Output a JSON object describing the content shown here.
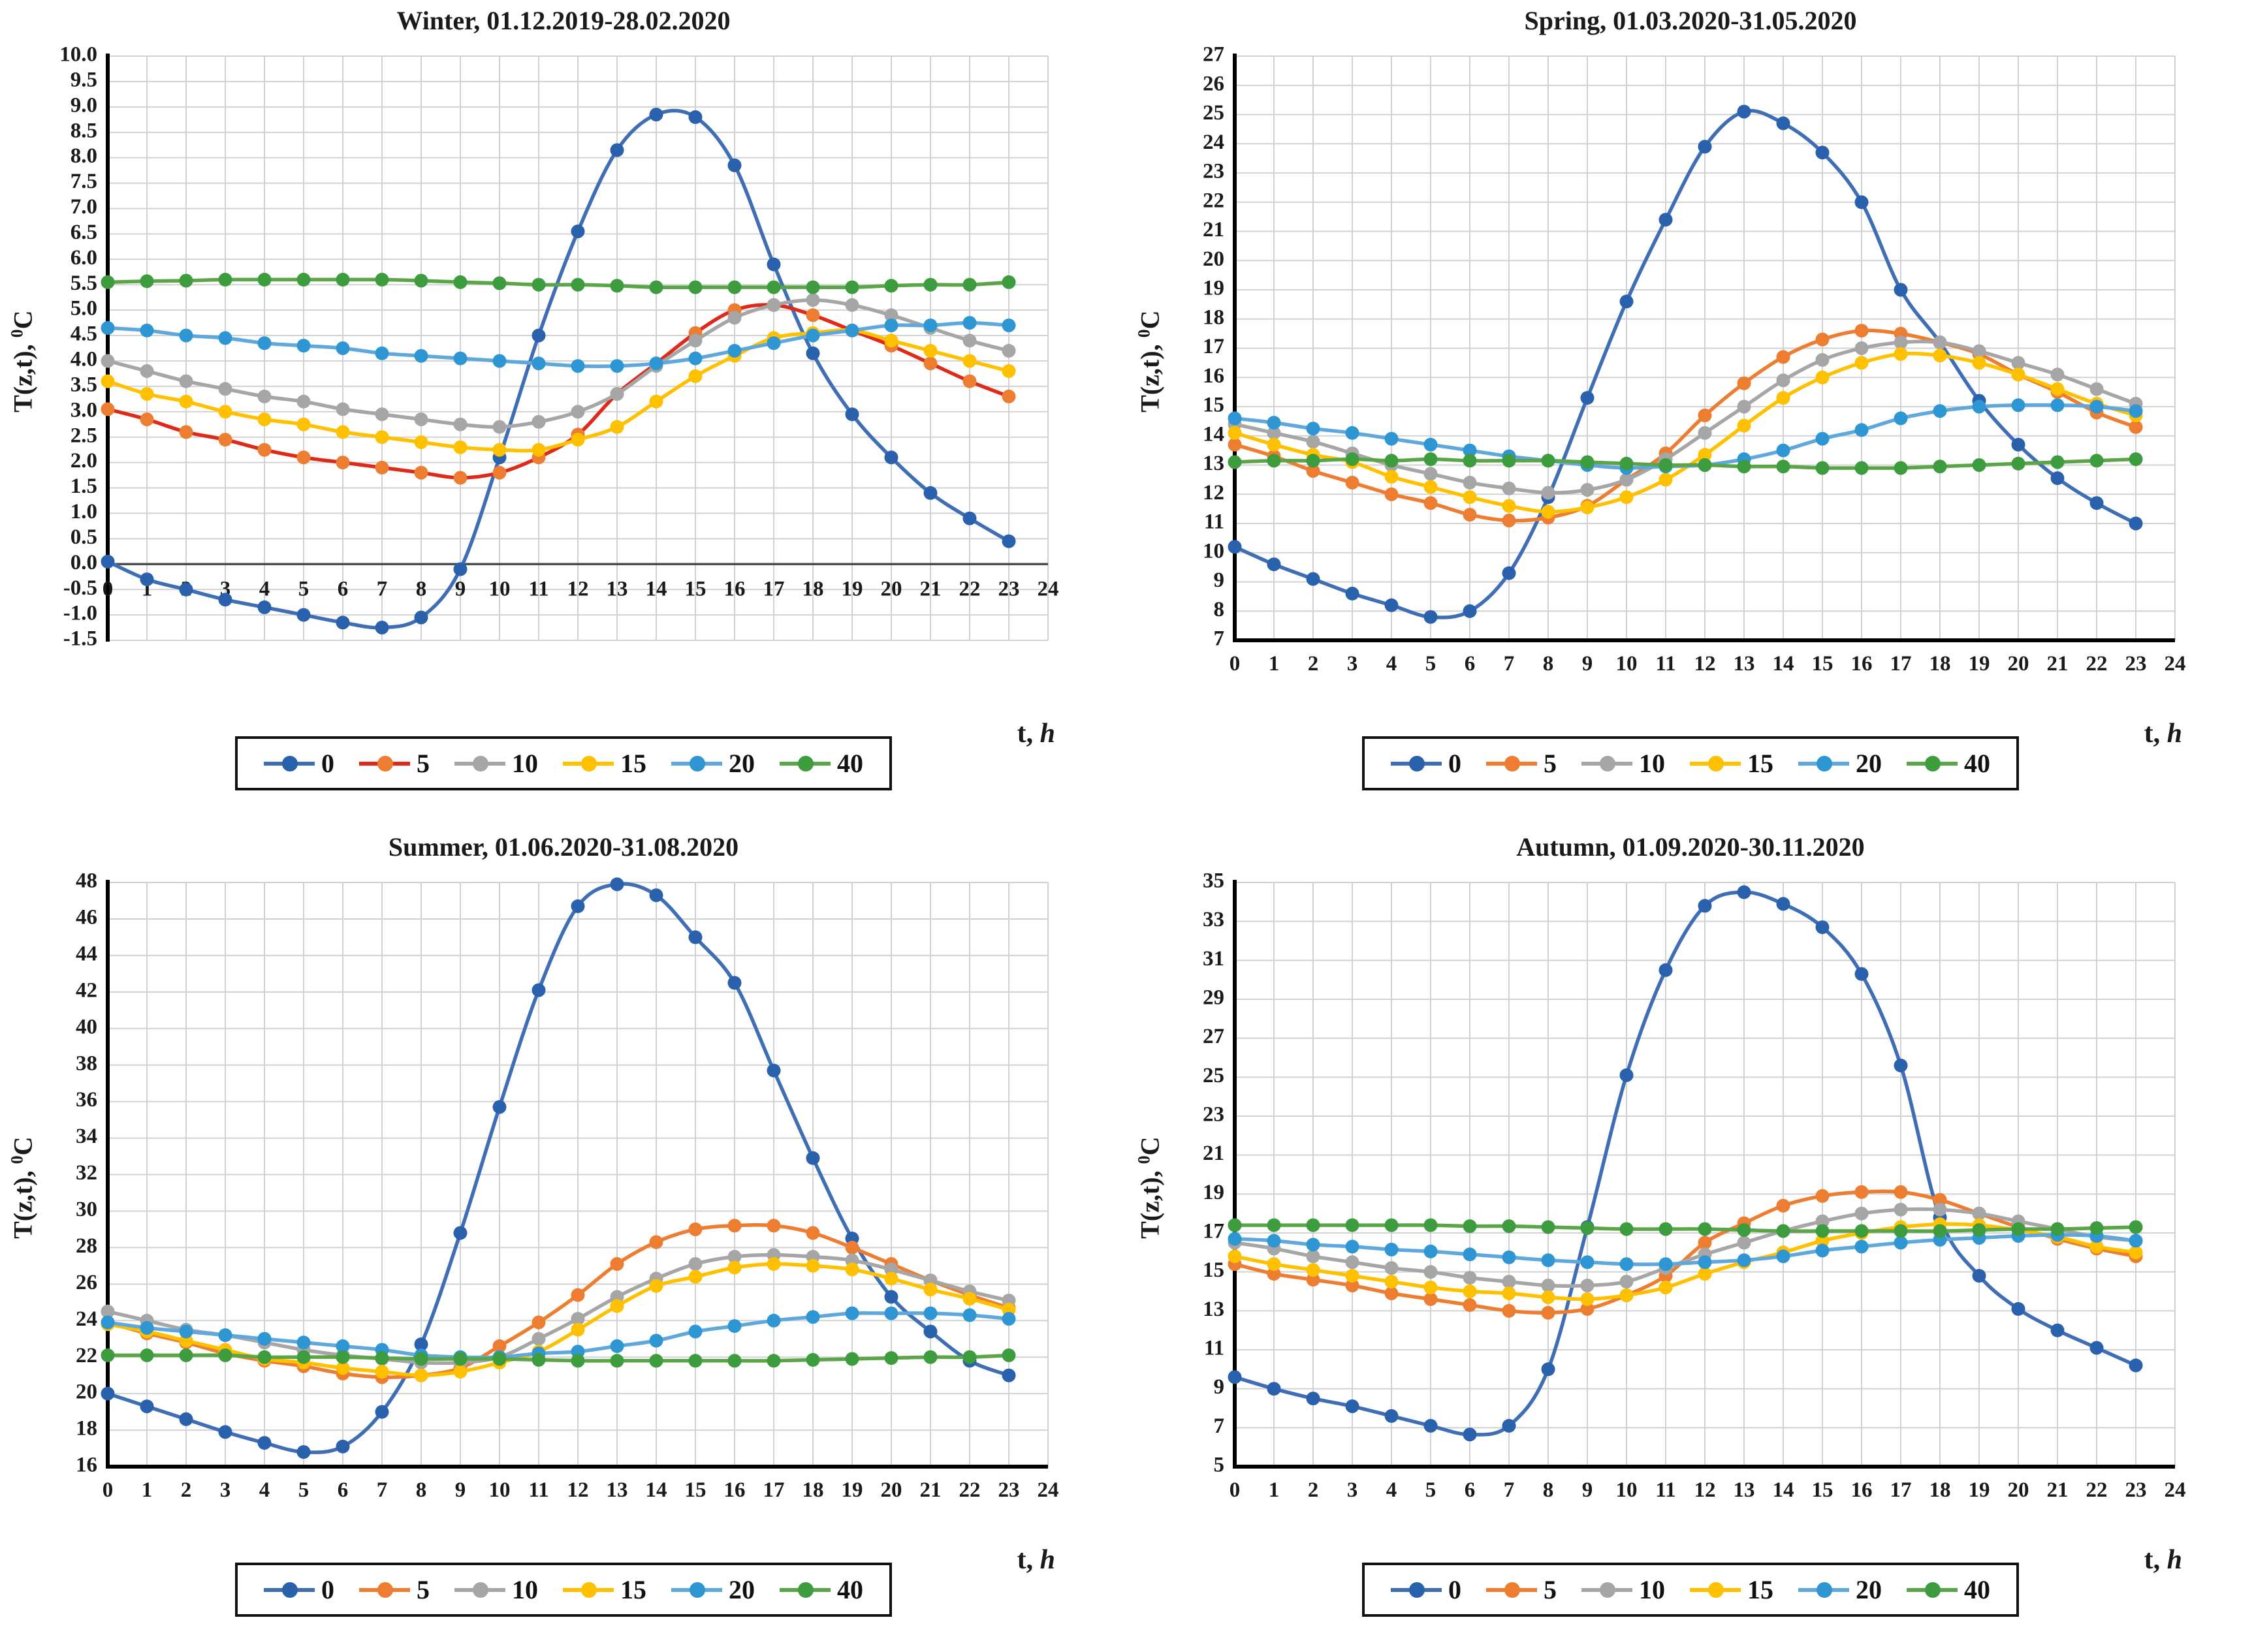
{
  "figure": {
    "background": "#ffffff",
    "grid_color": "#d2d2d2",
    "axis_color": "#000000",
    "zero_line_color": "#4d4d4d",
    "description": "Hourly ground temperature T(z,t) at depths 0,5,10,15,20,40 cm for four seasons"
  },
  "axis_labels": {
    "y_prefix": "T(z,t), ",
    "y_sup": "0",
    "y_suffix": "C",
    "x_t": "t, ",
    "x_h": "h"
  },
  "chart_data": [
    {
      "type": "line",
      "title": "Winter, 01.12.2019-28.02.2020",
      "xlabel": "t, h",
      "ylabel": "T(z,t), 0C",
      "x": [
        0,
        1,
        2,
        3,
        4,
        5,
        6,
        7,
        8,
        9,
        10,
        11,
        12,
        13,
        14,
        15,
        16,
        17,
        18,
        19,
        20,
        21,
        22,
        23
      ],
      "xlim": [
        0,
        24
      ],
      "ylim": [
        -1.5,
        10.0
      ],
      "y_step": 0.5,
      "y_decimals": 1,
      "x_axis_at_zero": true,
      "grid": true,
      "legend_position": "bottom",
      "legend": [
        "0",
        "5",
        "10",
        "15",
        "20",
        "40"
      ],
      "series": [
        {
          "name": "0",
          "line": "#3F6EB5",
          "marker": "#2A61AC",
          "values": [
            0.05,
            -0.3,
            -0.5,
            -0.7,
            -0.85,
            -1.0,
            -1.15,
            -1.25,
            -1.05,
            -0.1,
            2.1,
            4.5,
            6.55,
            8.15,
            8.85,
            8.8,
            7.85,
            5.9,
            4.15,
            2.95,
            2.1,
            1.4,
            0.9,
            0.45
          ]
        },
        {
          "name": "5",
          "line": "#DD2A1B",
          "marker": "#ED7D31",
          "values": [
            3.05,
            2.85,
            2.6,
            2.45,
            2.25,
            2.1,
            2.0,
            1.9,
            1.8,
            1.7,
            1.8,
            2.1,
            2.55,
            3.35,
            3.95,
            4.55,
            5.0,
            5.1,
            4.9,
            4.6,
            4.3,
            3.95,
            3.6,
            3.3
          ]
        },
        {
          "name": "10",
          "line": "#A6A6A6",
          "marker": "#A6A6A6",
          "values": [
            4.0,
            3.8,
            3.6,
            3.45,
            3.3,
            3.2,
            3.05,
            2.95,
            2.85,
            2.75,
            2.7,
            2.8,
            3.0,
            3.35,
            3.9,
            4.4,
            4.85,
            5.1,
            5.2,
            5.1,
            4.9,
            4.65,
            4.4,
            4.2
          ]
        },
        {
          "name": "15",
          "line": "#FFC000",
          "marker": "#FFC000",
          "values": [
            3.6,
            3.35,
            3.2,
            3.0,
            2.85,
            2.75,
            2.6,
            2.5,
            2.4,
            2.3,
            2.25,
            2.25,
            2.45,
            2.7,
            3.2,
            3.7,
            4.1,
            4.45,
            4.55,
            4.6,
            4.4,
            4.2,
            4.0,
            3.8
          ]
        },
        {
          "name": "20",
          "line": "#5FA8DC",
          "marker": "#2E96D3",
          "values": [
            4.65,
            4.6,
            4.5,
            4.45,
            4.35,
            4.3,
            4.25,
            4.15,
            4.1,
            4.05,
            4.0,
            3.95,
            3.9,
            3.9,
            3.95,
            4.05,
            4.2,
            4.35,
            4.5,
            4.6,
            4.7,
            4.7,
            4.75,
            4.7
          ]
        },
        {
          "name": "40",
          "line": "#5BA549",
          "marker": "#3D9C3D",
          "values": [
            5.55,
            5.57,
            5.58,
            5.6,
            5.6,
            5.6,
            5.6,
            5.6,
            5.58,
            5.55,
            5.53,
            5.5,
            5.5,
            5.48,
            5.45,
            5.45,
            5.45,
            5.45,
            5.45,
            5.45,
            5.48,
            5.5,
            5.5,
            5.55
          ]
        }
      ]
    },
    {
      "type": "line",
      "title": "Spring, 01.03.2020-31.05.2020",
      "xlabel": "t, h",
      "ylabel": "T(z,t), 0C",
      "x": [
        0,
        1,
        2,
        3,
        4,
        5,
        6,
        7,
        8,
        9,
        10,
        11,
        12,
        13,
        14,
        15,
        16,
        17,
        18,
        19,
        20,
        21,
        22,
        23
      ],
      "xlim": [
        0,
        24
      ],
      "ylim": [
        7,
        27
      ],
      "y_step": 1,
      "y_decimals": 0,
      "x_axis_at_zero": false,
      "grid": true,
      "legend_position": "bottom",
      "legend": [
        "0",
        "5",
        "10",
        "15",
        "20",
        "40"
      ],
      "series": [
        {
          "name": "0",
          "line": "#3F6EB5",
          "marker": "#2A61AC",
          "values": [
            10.2,
            9.6,
            9.1,
            8.6,
            8.2,
            7.8,
            8.0,
            9.3,
            11.9,
            15.3,
            18.6,
            21.4,
            23.9,
            25.1,
            24.7,
            23.7,
            22.0,
            19.0,
            17.2,
            15.2,
            13.7,
            12.55,
            11.7,
            11.0
          ]
        },
        {
          "name": "5",
          "line": "#ED7D31",
          "marker": "#ED7D31",
          "values": [
            13.7,
            13.3,
            12.8,
            12.4,
            12.0,
            11.7,
            11.3,
            11.1,
            11.2,
            11.6,
            12.5,
            13.4,
            14.7,
            15.8,
            16.7,
            17.3,
            17.6,
            17.5,
            17.2,
            16.8,
            16.1,
            15.5,
            14.8,
            14.3
          ]
        },
        {
          "name": "10",
          "line": "#A6A6A6",
          "marker": "#A6A6A6",
          "values": [
            14.4,
            14.1,
            13.8,
            13.4,
            13.0,
            12.7,
            12.4,
            12.2,
            12.05,
            12.15,
            12.5,
            13.2,
            14.1,
            15.0,
            15.9,
            16.6,
            17.0,
            17.2,
            17.2,
            16.9,
            16.5,
            16.1,
            15.6,
            15.1
          ]
        },
        {
          "name": "15",
          "line": "#FFC000",
          "marker": "#FFC000",
          "values": [
            14.1,
            13.7,
            13.35,
            13.1,
            12.6,
            12.25,
            11.9,
            11.6,
            11.4,
            11.55,
            11.9,
            12.5,
            13.35,
            14.35,
            15.3,
            16.0,
            16.5,
            16.8,
            16.75,
            16.5,
            16.1,
            15.6,
            15.1,
            14.7
          ]
        },
        {
          "name": "20",
          "line": "#5FA8DC",
          "marker": "#2E96D3",
          "values": [
            14.6,
            14.45,
            14.25,
            14.1,
            13.9,
            13.7,
            13.5,
            13.3,
            13.15,
            13.0,
            12.9,
            12.95,
            13.0,
            13.2,
            13.5,
            13.9,
            14.2,
            14.6,
            14.85,
            15.0,
            15.05,
            15.05,
            15.0,
            14.85
          ]
        },
        {
          "name": "40",
          "line": "#5BA549",
          "marker": "#3D9C3D",
          "values": [
            13.1,
            13.15,
            13.15,
            13.2,
            13.15,
            13.2,
            13.15,
            13.15,
            13.15,
            13.1,
            13.05,
            13.0,
            13.0,
            12.95,
            12.95,
            12.9,
            12.9,
            12.9,
            12.95,
            13.0,
            13.05,
            13.1,
            13.15,
            13.2
          ]
        }
      ]
    },
    {
      "type": "line",
      "title": "Summer, 01.06.2020-31.08.2020",
      "xlabel": "t, h",
      "ylabel": "T(z,t), 0C",
      "x": [
        0,
        1,
        2,
        3,
        4,
        5,
        6,
        7,
        8,
        9,
        10,
        11,
        12,
        13,
        14,
        15,
        16,
        17,
        18,
        19,
        20,
        21,
        22,
        23
      ],
      "xlim": [
        0,
        24
      ],
      "ylim": [
        16,
        48
      ],
      "y_step": 2,
      "y_decimals": 0,
      "x_axis_at_zero": false,
      "grid": true,
      "legend_position": "bottom",
      "legend": [
        "0",
        "5",
        "10",
        "15",
        "20",
        "40"
      ],
      "series": [
        {
          "name": "0",
          "line": "#3F6EB5",
          "marker": "#2A61AC",
          "values": [
            20.0,
            19.3,
            18.6,
            17.9,
            17.3,
            16.8,
            17.1,
            19.0,
            22.7,
            28.8,
            35.7,
            42.1,
            46.7,
            47.9,
            47.3,
            45.0,
            42.5,
            37.7,
            32.9,
            28.5,
            25.3,
            23.4,
            21.8,
            21.0
          ]
        },
        {
          "name": "5",
          "line": "#ED7D31",
          "marker": "#ED7D31",
          "values": [
            23.9,
            23.3,
            22.8,
            22.2,
            21.8,
            21.5,
            21.1,
            20.9,
            21.0,
            21.4,
            22.6,
            23.9,
            25.4,
            27.1,
            28.3,
            29.0,
            29.2,
            29.2,
            28.8,
            28.0,
            27.1,
            26.2,
            25.4,
            24.7
          ]
        },
        {
          "name": "10",
          "line": "#A6A6A6",
          "marker": "#A6A6A6",
          "values": [
            24.5,
            24.0,
            23.5,
            23.2,
            22.8,
            22.4,
            22.1,
            21.9,
            21.7,
            21.7,
            22.0,
            23.0,
            24.1,
            25.3,
            26.3,
            27.1,
            27.5,
            27.6,
            27.5,
            27.3,
            26.8,
            26.2,
            25.6,
            25.1
          ]
        },
        {
          "name": "15",
          "line": "#FFC000",
          "marker": "#FFC000",
          "values": [
            23.8,
            23.4,
            22.9,
            22.4,
            21.9,
            21.7,
            21.4,
            21.2,
            21.0,
            21.2,
            21.7,
            22.3,
            23.5,
            24.8,
            25.9,
            26.4,
            26.9,
            27.1,
            27.0,
            26.8,
            26.3,
            25.7,
            25.2,
            24.6
          ]
        },
        {
          "name": "20",
          "line": "#5FA8DC",
          "marker": "#2E96D3",
          "values": [
            23.9,
            23.6,
            23.4,
            23.2,
            23.0,
            22.8,
            22.6,
            22.4,
            22.1,
            22.0,
            22.0,
            22.2,
            22.3,
            22.6,
            22.9,
            23.4,
            23.7,
            24.0,
            24.2,
            24.4,
            24.4,
            24.4,
            24.3,
            24.1
          ]
        },
        {
          "name": "40",
          "line": "#5BA549",
          "marker": "#3D9C3D",
          "values": [
            22.1,
            22.1,
            22.1,
            22.1,
            22.0,
            22.0,
            22.0,
            21.95,
            21.9,
            21.9,
            21.9,
            21.85,
            21.8,
            21.8,
            21.8,
            21.8,
            21.8,
            21.8,
            21.85,
            21.9,
            21.95,
            22.0,
            22.0,
            22.1
          ]
        }
      ]
    },
    {
      "type": "line",
      "title": "Autumn, 01.09.2020-30.11.2020",
      "xlabel": "t, h",
      "ylabel": "T(z,t), 0C",
      "x": [
        0,
        1,
        2,
        3,
        4,
        5,
        6,
        7,
        8,
        9,
        10,
        11,
        12,
        13,
        14,
        15,
        16,
        17,
        18,
        19,
        20,
        21,
        22,
        23
      ],
      "xlim": [
        0,
        24
      ],
      "ylim": [
        5,
        35
      ],
      "y_step": 2,
      "y_decimals": 0,
      "x_axis_at_zero": false,
      "grid": true,
      "legend_position": "bottom",
      "legend": [
        "0",
        "5",
        "10",
        "15",
        "20",
        "40"
      ],
      "series": [
        {
          "name": "0",
          "line": "#3F6EB5",
          "marker": "#2A61AC",
          "values": [
            9.6,
            9.0,
            8.5,
            8.1,
            7.6,
            7.1,
            6.65,
            7.1,
            10.0,
            17.3,
            25.1,
            30.5,
            33.8,
            34.5,
            33.9,
            32.7,
            30.3,
            25.6,
            17.8,
            14.8,
            13.1,
            12.0,
            11.1,
            10.2
          ]
        },
        {
          "name": "5",
          "line": "#ED7D31",
          "marker": "#ED7D31",
          "values": [
            15.4,
            14.9,
            14.6,
            14.3,
            13.9,
            13.6,
            13.3,
            13.0,
            12.9,
            13.1,
            13.8,
            14.8,
            16.5,
            17.5,
            18.4,
            18.9,
            19.1,
            19.1,
            18.7,
            18.0,
            17.3,
            16.7,
            16.2,
            15.8
          ]
        },
        {
          "name": "10",
          "line": "#A6A6A6",
          "marker": "#A6A6A6",
          "values": [
            16.5,
            16.2,
            15.8,
            15.5,
            15.2,
            15.0,
            14.7,
            14.5,
            14.3,
            14.3,
            14.5,
            15.2,
            15.9,
            16.5,
            17.1,
            17.6,
            18.0,
            18.2,
            18.2,
            18.0,
            17.6,
            17.2,
            16.8,
            16.6
          ]
        },
        {
          "name": "15",
          "line": "#FFC000",
          "marker": "#FFC000",
          "values": [
            15.8,
            15.4,
            15.1,
            14.8,
            14.5,
            14.2,
            14.0,
            13.9,
            13.7,
            13.6,
            13.8,
            14.2,
            14.9,
            15.5,
            16.0,
            16.6,
            17.0,
            17.3,
            17.45,
            17.4,
            17.15,
            16.8,
            16.3,
            16.0
          ]
        },
        {
          "name": "20",
          "line": "#5FA8DC",
          "marker": "#2E96D3",
          "values": [
            16.7,
            16.6,
            16.4,
            16.3,
            16.15,
            16.05,
            15.9,
            15.75,
            15.6,
            15.5,
            15.4,
            15.4,
            15.5,
            15.6,
            15.8,
            16.1,
            16.3,
            16.5,
            16.65,
            16.75,
            16.85,
            16.9,
            16.85,
            16.6
          ]
        },
        {
          "name": "40",
          "line": "#5BA549",
          "marker": "#3D9C3D",
          "values": [
            17.4,
            17.4,
            17.4,
            17.4,
            17.4,
            17.4,
            17.35,
            17.35,
            17.3,
            17.25,
            17.2,
            17.2,
            17.2,
            17.15,
            17.1,
            17.1,
            17.1,
            17.1,
            17.1,
            17.15,
            17.2,
            17.2,
            17.25,
            17.3
          ]
        }
      ]
    }
  ]
}
